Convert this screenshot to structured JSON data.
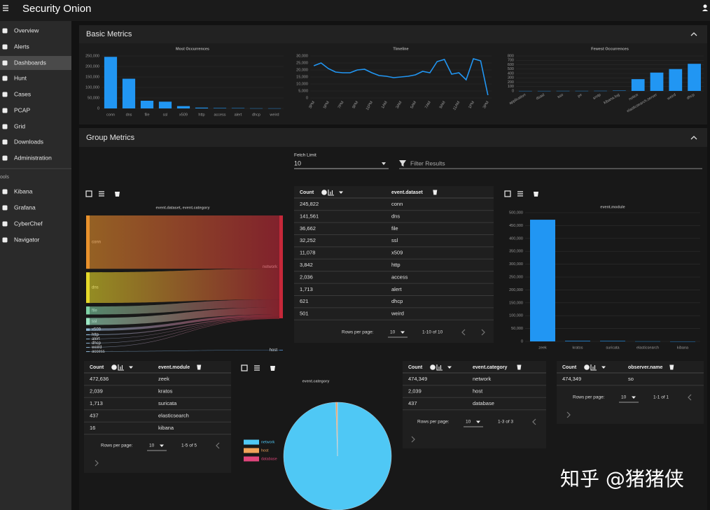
{
  "header": {
    "brand": "Security Onion"
  },
  "nav": {
    "items": [
      "Overview",
      "Alerts",
      "Dashboards",
      "Hunt",
      "Cases",
      "PCAP",
      "Grid",
      "Downloads",
      "Administration"
    ],
    "active": "Dashboards",
    "tools_label": "ools",
    "tools": [
      "Kibana",
      "Grafana",
      "CyberChef",
      "Navigator"
    ]
  },
  "basic_metrics": {
    "title": "Basic Metrics",
    "charts": [
      {
        "type": "bar",
        "title": "Most Occurrences",
        "categories": [
          "conn",
          "dns",
          "file",
          "ssl",
          "x509",
          "http",
          "access",
          "alert",
          "dhcp",
          "weird"
        ],
        "values": [
          245822,
          141561,
          36662,
          32252,
          11078,
          3842,
          2036,
          1713,
          621,
          501
        ],
        "color": "#2196f3",
        "ylim": [
          0,
          250000
        ],
        "yticks": [
          0,
          {
            "value": 50000,
            "label": "50,000"
          },
          {
            "value": 100000,
            "label": "100,000"
          },
          {
            "value": 150000,
            "label": "150,000"
          },
          {
            "value": 200000,
            "label": "200,000"
          },
          {
            "value": 250000,
            "label": "250,000"
          }
        ]
      },
      {
        "type": "line",
        "title": "Timeline",
        "categories": [
          "3PM",
          null,
          "5PM",
          null,
          "7PM",
          null,
          "9PM",
          null,
          "11PM",
          null,
          "1AM",
          null,
          "3AM",
          null,
          "5AM",
          null,
          "7AM",
          null,
          "9AM",
          null,
          "11AM",
          null,
          "1PM",
          null,
          "3PM"
        ],
        "values": [
          23000,
          25000,
          21000,
          18500,
          18000,
          18000,
          20000,
          20500,
          18000,
          16000,
          15500,
          14500,
          15000,
          15500,
          16500,
          19000,
          18000,
          26000,
          27500,
          17000,
          18000,
          13000,
          28000,
          26500,
          2000
        ],
        "color": "#2196f3",
        "ylim": [
          0,
          30000
        ],
        "yticks": [
          0,
          {
            "value": 5000,
            "label": "5,000"
          },
          {
            "value": 10000,
            "label": "10,000"
          },
          {
            "value": 15000,
            "label": "15,000"
          },
          {
            "value": 20000,
            "label": "20,000"
          },
          {
            "value": 25000,
            "label": "25,000"
          },
          {
            "value": 30000,
            "label": "30,000"
          }
        ]
      },
      {
        "type": "bar",
        "title": "Fewest Occurrences",
        "categories": [
          "application",
          "dsasl",
          "sso",
          "pe",
          "smtp",
          "kibana.log",
          "notice",
          "elasticsearch.server",
          "weird",
          "dhcp"
        ],
        "values": [
          1,
          1,
          2,
          2,
          3,
          8,
          270,
          420,
          501,
          621
        ],
        "color": "#2196f3",
        "ylim": [
          0,
          800
        ],
        "yticks": [
          0,
          100,
          200,
          300,
          400,
          500,
          600,
          700,
          800
        ]
      }
    ]
  },
  "group_metrics": {
    "title": "Group Metrics",
    "fetch_limit_label": "Fetch Limit",
    "fetch_limit": "10",
    "filter_placeholder": "Filter Results",
    "sankey": {
      "title": "event.dataset, event.category",
      "left": [
        {
          "name": "conn",
          "color": "#e8912c"
        },
        {
          "name": "dns",
          "color": "#e6d92a"
        },
        {
          "name": "file",
          "color": "#7fd3a6"
        },
        {
          "name": "ssl",
          "color": "#9be7c4"
        },
        {
          "name": "x509",
          "color": "#8fb8d8"
        },
        {
          "name": "http",
          "color": "#8fb8d8"
        },
        {
          "name": "alert",
          "color": "#8fb8d8"
        },
        {
          "name": "dhcp",
          "color": "#8fb8d8"
        },
        {
          "name": "weird",
          "color": "#8fb8d8"
        },
        {
          "name": "access",
          "color": "#8fb8d8"
        }
      ],
      "right": [
        {
          "name": "network",
          "color": "#c62839"
        },
        {
          "name": "host",
          "color": "#4a7fb5"
        }
      ],
      "links": [
        {
          "source": "conn",
          "target": "network",
          "value": 245822
        },
        {
          "source": "dns",
          "target": "network",
          "value": 141561
        },
        {
          "source": "file",
          "target": "network",
          "value": 36662
        },
        {
          "source": "ssl",
          "target": "network",
          "value": 32252
        },
        {
          "source": "x509",
          "target": "network",
          "value": 11078
        },
        {
          "source": "http",
          "target": "network",
          "value": 3842
        },
        {
          "source": "alert",
          "target": "network",
          "value": 1713
        },
        {
          "source": "dhcp",
          "target": "network",
          "value": 621
        },
        {
          "source": "weird",
          "target": "network",
          "value": 501
        },
        {
          "source": "access",
          "target": "host",
          "value": 2036
        }
      ]
    },
    "module_chart": {
      "type": "bar",
      "title": "event.module",
      "categories": [
        "zeek",
        "kratos",
        "suricata",
        "elasticsearch",
        "kibana"
      ],
      "values": [
        472636,
        2039,
        1713,
        437,
        16
      ],
      "color": "#2196f3",
      "ylim": [
        0,
        500000
      ],
      "yticks": [
        0,
        {
          "value": 50000,
          "label": "50,000"
        },
        {
          "value": 100000,
          "label": "100,000"
        },
        {
          "value": 150000,
          "label": "150,000"
        },
        {
          "value": 200000,
          "label": "200,000"
        },
        {
          "value": 250000,
          "label": "250,000"
        },
        {
          "value": 300000,
          "label": "300,000"
        },
        {
          "value": 350000,
          "label": "350,000"
        },
        {
          "value": 400000,
          "label": "400,000"
        },
        {
          "value": 450000,
          "label": "450,000"
        },
        {
          "value": 500000,
          "label": "500,000"
        }
      ]
    },
    "pie": {
      "type": "pie",
      "title": "event.category",
      "categories": [
        "network",
        "host",
        "database"
      ],
      "values": [
        474349,
        2039,
        437
      ],
      "colors": [
        "#4fc8f5",
        "#f0a35a",
        "#e0457b"
      ]
    },
    "tables": [
      {
        "headers": [
          "Count",
          "event.dataset"
        ],
        "rows": [
          [
            "245,822",
            "conn"
          ],
          [
            "141,561",
            "dns"
          ],
          [
            "36,662",
            "file"
          ],
          [
            "32,252",
            "ssl"
          ],
          [
            "11,078",
            "x509"
          ],
          [
            "3,842",
            "http"
          ],
          [
            "2,036",
            "access"
          ],
          [
            "1,713",
            "alert"
          ],
          [
            "621",
            "dhcp"
          ],
          [
            "501",
            "weird"
          ]
        ],
        "rows_per_page_label": "Rows per page:",
        "rows_per_page": "10",
        "range": "1-10 of 10"
      },
      {
        "headers": [
          "Count",
          "event.module"
        ],
        "rows": [
          [
            "472,636",
            "zeek"
          ],
          [
            "2,039",
            "kratos"
          ],
          [
            "1,713",
            "suricata"
          ],
          [
            "437",
            "elasticsearch"
          ],
          [
            "16",
            "kibana"
          ]
        ],
        "rows_per_page_label": "Rows per page:",
        "rows_per_page": "10",
        "range": "1-5 of 5"
      },
      {
        "headers": [
          "Count",
          "event.category"
        ],
        "rows": [
          [
            "474,349",
            "network"
          ],
          [
            "2,039",
            "host"
          ],
          [
            "437",
            "database"
          ]
        ],
        "rows_per_page_label": "Rows per page:",
        "rows_per_page": "10",
        "range": "1-3 of 3"
      },
      {
        "headers": [
          "Count",
          "observer.name"
        ],
        "rows": [
          [
            "474,349",
            "so"
          ]
        ],
        "rows_per_page_label": "Rows per page:",
        "rows_per_page": "10",
        "range": "1-1 of 1"
      }
    ]
  },
  "watermark": "知乎 @猪猪侠"
}
